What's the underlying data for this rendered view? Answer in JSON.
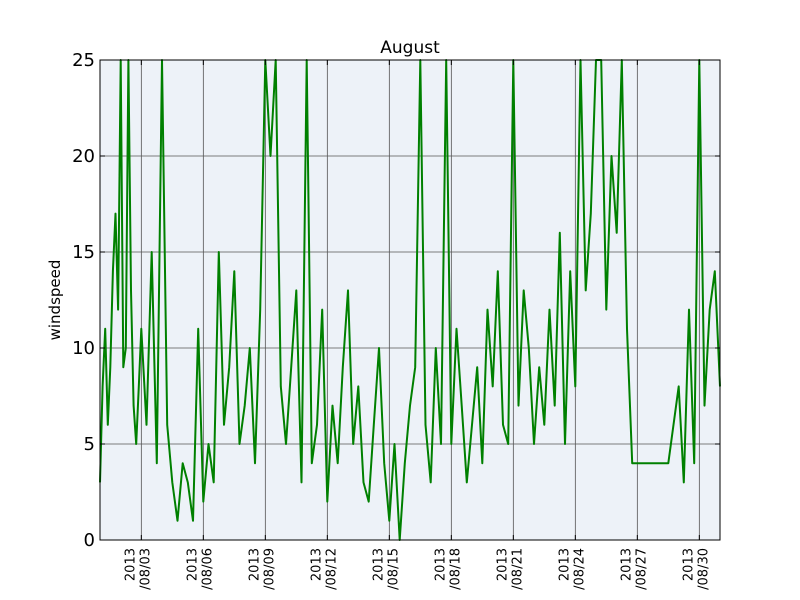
{
  "chart_data": {
    "type": "line",
    "title": "August",
    "xlabel": "",
    "ylabel": "windspeed",
    "ylim": [
      0,
      25
    ],
    "yticks": [
      0,
      5,
      10,
      15,
      20,
      25
    ],
    "xlim": [
      "2013-08-01",
      "2013-08-31"
    ],
    "xticks": [
      {
        "date": "2013-08-03",
        "label": [
          "2013",
          "/08/03"
        ]
      },
      {
        "date": "2013-08-06",
        "label": [
          "2013",
          "/08/06"
        ]
      },
      {
        "date": "2013-08-09",
        "label": [
          "2013",
          "/08/09"
        ]
      },
      {
        "date": "2013-08-12",
        "label": [
          "2013",
          "/08/12"
        ]
      },
      {
        "date": "2013-08-15",
        "label": [
          "2013",
          "/08/15"
        ]
      },
      {
        "date": "2013-08-18",
        "label": [
          "2013",
          "/08/18"
        ]
      },
      {
        "date": "2013-08-21",
        "label": [
          "2013",
          "/08/21"
        ]
      },
      {
        "date": "2013-08-24",
        "label": [
          "2013",
          "/08/24"
        ]
      },
      {
        "date": "2013-08-27",
        "label": [
          "2013",
          "/08/27"
        ]
      },
      {
        "date": "2013-08-30",
        "label": [
          "2013",
          "/08/30"
        ]
      }
    ],
    "grid": true,
    "colors": {
      "line": "#008000",
      "plot_background": "#edf2f8",
      "grid": "#555555"
    },
    "series": [
      {
        "x": [
          "2013-08-01 00:00",
          "2013-08-01 03:00",
          "2013-08-01 06:00",
          "2013-08-01 09:00",
          "2013-08-01 12:00",
          "2013-08-01 15:00",
          "2013-08-01 18:00",
          "2013-08-01 21:00",
          "2013-08-02 00:00",
          "2013-08-02 03:00",
          "2013-08-02 06:00",
          "2013-08-02 09:00",
          "2013-08-02 12:00",
          "2013-08-02 15:00",
          "2013-08-02 18:00",
          "2013-08-02 21:00",
          "2013-08-03 00:00",
          "2013-08-03 06:00",
          "2013-08-03 12:00",
          "2013-08-03 18:00",
          "2013-08-04 00:00",
          "2013-08-04 06:00",
          "2013-08-04 12:00",
          "2013-08-04 18:00",
          "2013-08-05 00:00",
          "2013-08-05 06:00",
          "2013-08-05 12:00",
          "2013-08-05 18:00",
          "2013-08-06 00:00",
          "2013-08-06 06:00",
          "2013-08-06 12:00",
          "2013-08-06 18:00",
          "2013-08-07 00:00",
          "2013-08-07 06:00",
          "2013-08-07 12:00",
          "2013-08-07 18:00",
          "2013-08-08 00:00",
          "2013-08-08 06:00",
          "2013-08-08 12:00",
          "2013-08-08 18:00",
          "2013-08-09 00:00",
          "2013-08-09 06:00",
          "2013-08-09 12:00",
          "2013-08-09 18:00",
          "2013-08-10 00:00",
          "2013-08-10 06:00",
          "2013-08-10 12:00",
          "2013-08-10 18:00",
          "2013-08-11 00:00",
          "2013-08-11 06:00",
          "2013-08-11 12:00",
          "2013-08-11 18:00",
          "2013-08-12 00:00",
          "2013-08-12 06:00",
          "2013-08-12 12:00",
          "2013-08-12 18:00",
          "2013-08-13 00:00",
          "2013-08-13 06:00",
          "2013-08-13 12:00",
          "2013-08-13 18:00",
          "2013-08-14 00:00",
          "2013-08-14 06:00",
          "2013-08-14 12:00",
          "2013-08-14 18:00",
          "2013-08-15 00:00",
          "2013-08-15 06:00",
          "2013-08-15 12:00",
          "2013-08-15 18:00",
          "2013-08-16 00:00",
          "2013-08-16 06:00",
          "2013-08-16 12:00",
          "2013-08-16 18:00",
          "2013-08-17 00:00",
          "2013-08-17 06:00",
          "2013-08-17 12:00",
          "2013-08-17 18:00",
          "2013-08-18 00:00",
          "2013-08-18 06:00",
          "2013-08-18 12:00",
          "2013-08-18 18:00",
          "2013-08-19 00:00",
          "2013-08-19 06:00",
          "2013-08-19 12:00",
          "2013-08-19 18:00",
          "2013-08-20 00:00",
          "2013-08-20 06:00",
          "2013-08-20 12:00",
          "2013-08-20 18:00",
          "2013-08-21 00:00",
          "2013-08-21 06:00",
          "2013-08-21 12:00",
          "2013-08-21 18:00",
          "2013-08-22 00:00",
          "2013-08-22 06:00",
          "2013-08-22 12:00",
          "2013-08-22 18:00",
          "2013-08-23 00:00",
          "2013-08-23 06:00",
          "2013-08-23 12:00",
          "2013-08-23 18:00",
          "2013-08-24 00:00",
          "2013-08-24 06:00",
          "2013-08-24 12:00",
          "2013-08-24 18:00",
          "2013-08-25 00:00",
          "2013-08-25 06:00",
          "2013-08-25 12:00",
          "2013-08-25 18:00",
          "2013-08-26 00:00",
          "2013-08-26 06:00",
          "2013-08-26 12:00",
          "2013-08-26 18:00",
          "2013-08-27 00:00",
          "2013-08-27 12:00",
          "2013-08-28 00:00",
          "2013-08-28 12:00",
          "2013-08-29 00:00",
          "2013-08-29 06:00",
          "2013-08-29 12:00",
          "2013-08-29 18:00",
          "2013-08-30 00:00",
          "2013-08-30 06:00",
          "2013-08-30 12:00",
          "2013-08-30 18:00",
          "2013-08-31 00:00"
        ],
        "values": [
          3,
          8,
          11,
          6,
          9,
          14,
          17,
          12,
          25,
          9,
          10,
          25,
          13,
          7,
          5,
          8,
          11,
          6,
          15,
          4,
          25,
          6,
          3,
          1,
          4,
          3,
          1,
          11,
          2,
          5,
          3,
          15,
          6,
          9,
          14,
          5,
          7,
          10,
          4,
          12,
          25,
          20,
          25,
          8,
          5,
          9,
          13,
          3,
          25,
          4,
          6,
          12,
          2,
          7,
          4,
          9,
          13,
          5,
          8,
          3,
          2,
          6,
          10,
          4,
          1,
          5,
          0,
          4,
          7,
          9,
          25,
          6,
          3,
          10,
          5,
          25,
          5,
          11,
          7,
          3,
          6,
          9,
          4,
          12,
          8,
          14,
          6,
          5,
          25,
          7,
          13,
          10,
          5,
          9,
          6,
          12,
          7,
          16,
          5,
          14,
          8,
          25,
          13,
          17,
          25,
          25,
          12,
          20,
          16,
          25,
          11,
          4,
          4,
          4,
          4,
          4,
          8,
          3,
          12,
          4,
          25,
          7,
          12,
          14,
          8
        ]
      }
    ]
  }
}
